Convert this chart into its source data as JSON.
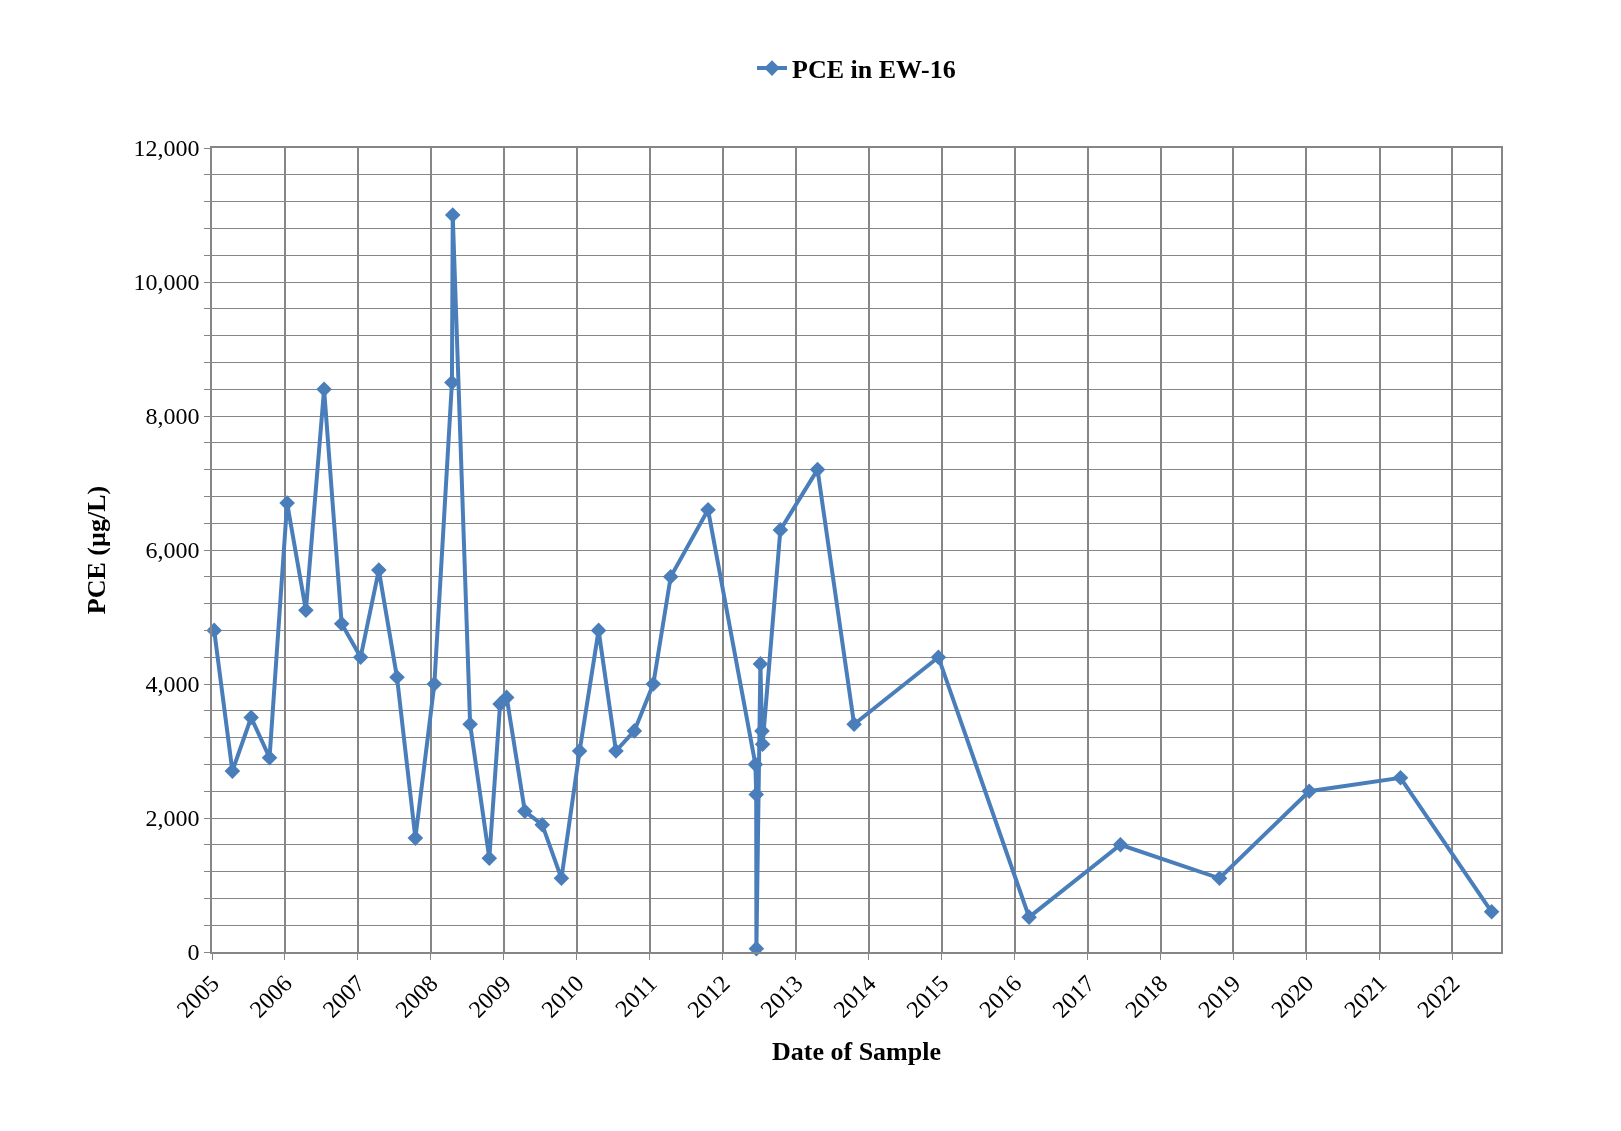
{
  "chart_data": {
    "type": "line",
    "xlabel": "Date of Sample",
    "ylabel": "PCE (µg/L)",
    "legend": "top",
    "marker": "diamond",
    "line_style": "solid",
    "grid": true,
    "x": [
      "2005-01-12",
      "2005-04-13",
      "2005-07-16",
      "2005-10-16",
      "2006-01-12",
      "2006-04-16",
      "2006-07-16",
      "2006-10-12",
      "2007-01-15",
      "2007-04-16",
      "2007-07-16",
      "2007-10-16",
      "2008-01-19",
      "2008-04-16",
      "2008-04-20",
      "2008-07-16",
      "2008-10-20",
      "2008-12-13",
      "2009-01-15",
      "2009-04-16",
      "2009-07-12",
      "2009-10-16",
      "2010-01-15",
      "2010-04-20",
      "2010-07-16",
      "2010-10-16",
      "2011-01-19",
      "2011-04-16",
      "2011-10-20",
      "2012-06-13",
      "2012-06-17",
      "2012-06-18",
      "2012-07-08",
      "2012-07-16",
      "2012-07-19",
      "2012-10-16",
      "2013-04-20",
      "2013-10-20",
      "2014-12-16",
      "2016-03-14",
      "2017-06-14",
      "2018-10-23",
      "2020-01-15",
      "2021-04-16",
      "2022-07-16"
    ],
    "series": [
      {
        "name": "PCE in EW-16",
        "color": "#4a7ebb",
        "values": [
          4800,
          2700,
          3500,
          2900,
          6700,
          5100,
          8400,
          4900,
          4400,
          5700,
          4100,
          1700,
          4000,
          8500,
          11000,
          3400,
          1400,
          3700,
          3800,
          2100,
          1900,
          1100,
          3000,
          4800,
          3000,
          3300,
          4000,
          5600,
          6600,
          2800,
          2350,
          50,
          4300,
          3300,
          3100,
          6300,
          7200,
          3400,
          4400,
          520,
          1600,
          1100,
          2400,
          2600,
          600
        ]
      }
    ],
    "xlim": [
      "2005-01-01",
      "2022-09-01"
    ],
    "xticks": [
      {
        "value": "2005-01-01",
        "label": "2005"
      },
      {
        "value": "2006-01-01",
        "label": "2006"
      },
      {
        "value": "2007-01-01",
        "label": "2007"
      },
      {
        "value": "2008-01-01",
        "label": "2008"
      },
      {
        "value": "2009-01-01",
        "label": "2009"
      },
      {
        "value": "2010-01-01",
        "label": "2010"
      },
      {
        "value": "2011-01-01",
        "label": "2011"
      },
      {
        "value": "2012-01-01",
        "label": "2012"
      },
      {
        "value": "2013-01-01",
        "label": "2013"
      },
      {
        "value": "2014-01-01",
        "label": "2014"
      },
      {
        "value": "2015-01-01",
        "label": "2015"
      },
      {
        "value": "2016-01-01",
        "label": "2016"
      },
      {
        "value": "2017-01-01",
        "label": "2017"
      },
      {
        "value": "2018-01-01",
        "label": "2018"
      },
      {
        "value": "2019-01-01",
        "label": "2019"
      },
      {
        "value": "2020-01-01",
        "label": "2020"
      },
      {
        "value": "2021-01-01",
        "label": "2021"
      },
      {
        "value": "2022-01-01",
        "label": "2022"
      }
    ],
    "ylim": [
      0,
      12000
    ],
    "yticks": [
      0,
      {
        "value": 400,
        "label": null
      },
      {
        "value": 800,
        "label": null
      },
      {
        "value": 1200,
        "label": null
      },
      {
        "value": 1600,
        "label": null
      },
      {
        "value": 2000,
        "label": "2,000"
      },
      {
        "value": 2400,
        "label": null
      },
      {
        "value": 2800,
        "label": null
      },
      {
        "value": 3200,
        "label": null
      },
      {
        "value": 3600,
        "label": null
      },
      {
        "value": 4000,
        "label": "4,000"
      },
      {
        "value": 4400,
        "label": null
      },
      {
        "value": 4800,
        "label": null
      },
      {
        "value": 5200,
        "label": null
      },
      {
        "value": 5600,
        "label": null
      },
      {
        "value": 6000,
        "label": "6,000"
      },
      {
        "value": 6400,
        "label": null
      },
      {
        "value": 6800,
        "label": null
      },
      {
        "value": 7200,
        "label": null
      },
      {
        "value": 7600,
        "label": null
      },
      {
        "value": 8000,
        "label": "8,000"
      },
      {
        "value": 8400,
        "label": null
      },
      {
        "value": 8800,
        "label": null
      },
      {
        "value": 9200,
        "label": null
      },
      {
        "value": 9600,
        "label": null
      },
      {
        "value": 10000,
        "label": "10,000"
      },
      {
        "value": 10400,
        "label": null
      },
      {
        "value": 10800,
        "label": null
      },
      {
        "value": 11200,
        "label": null
      },
      {
        "value": 11600,
        "label": null
      },
      {
        "value": 12000,
        "label": "12,000"
      }
    ]
  }
}
